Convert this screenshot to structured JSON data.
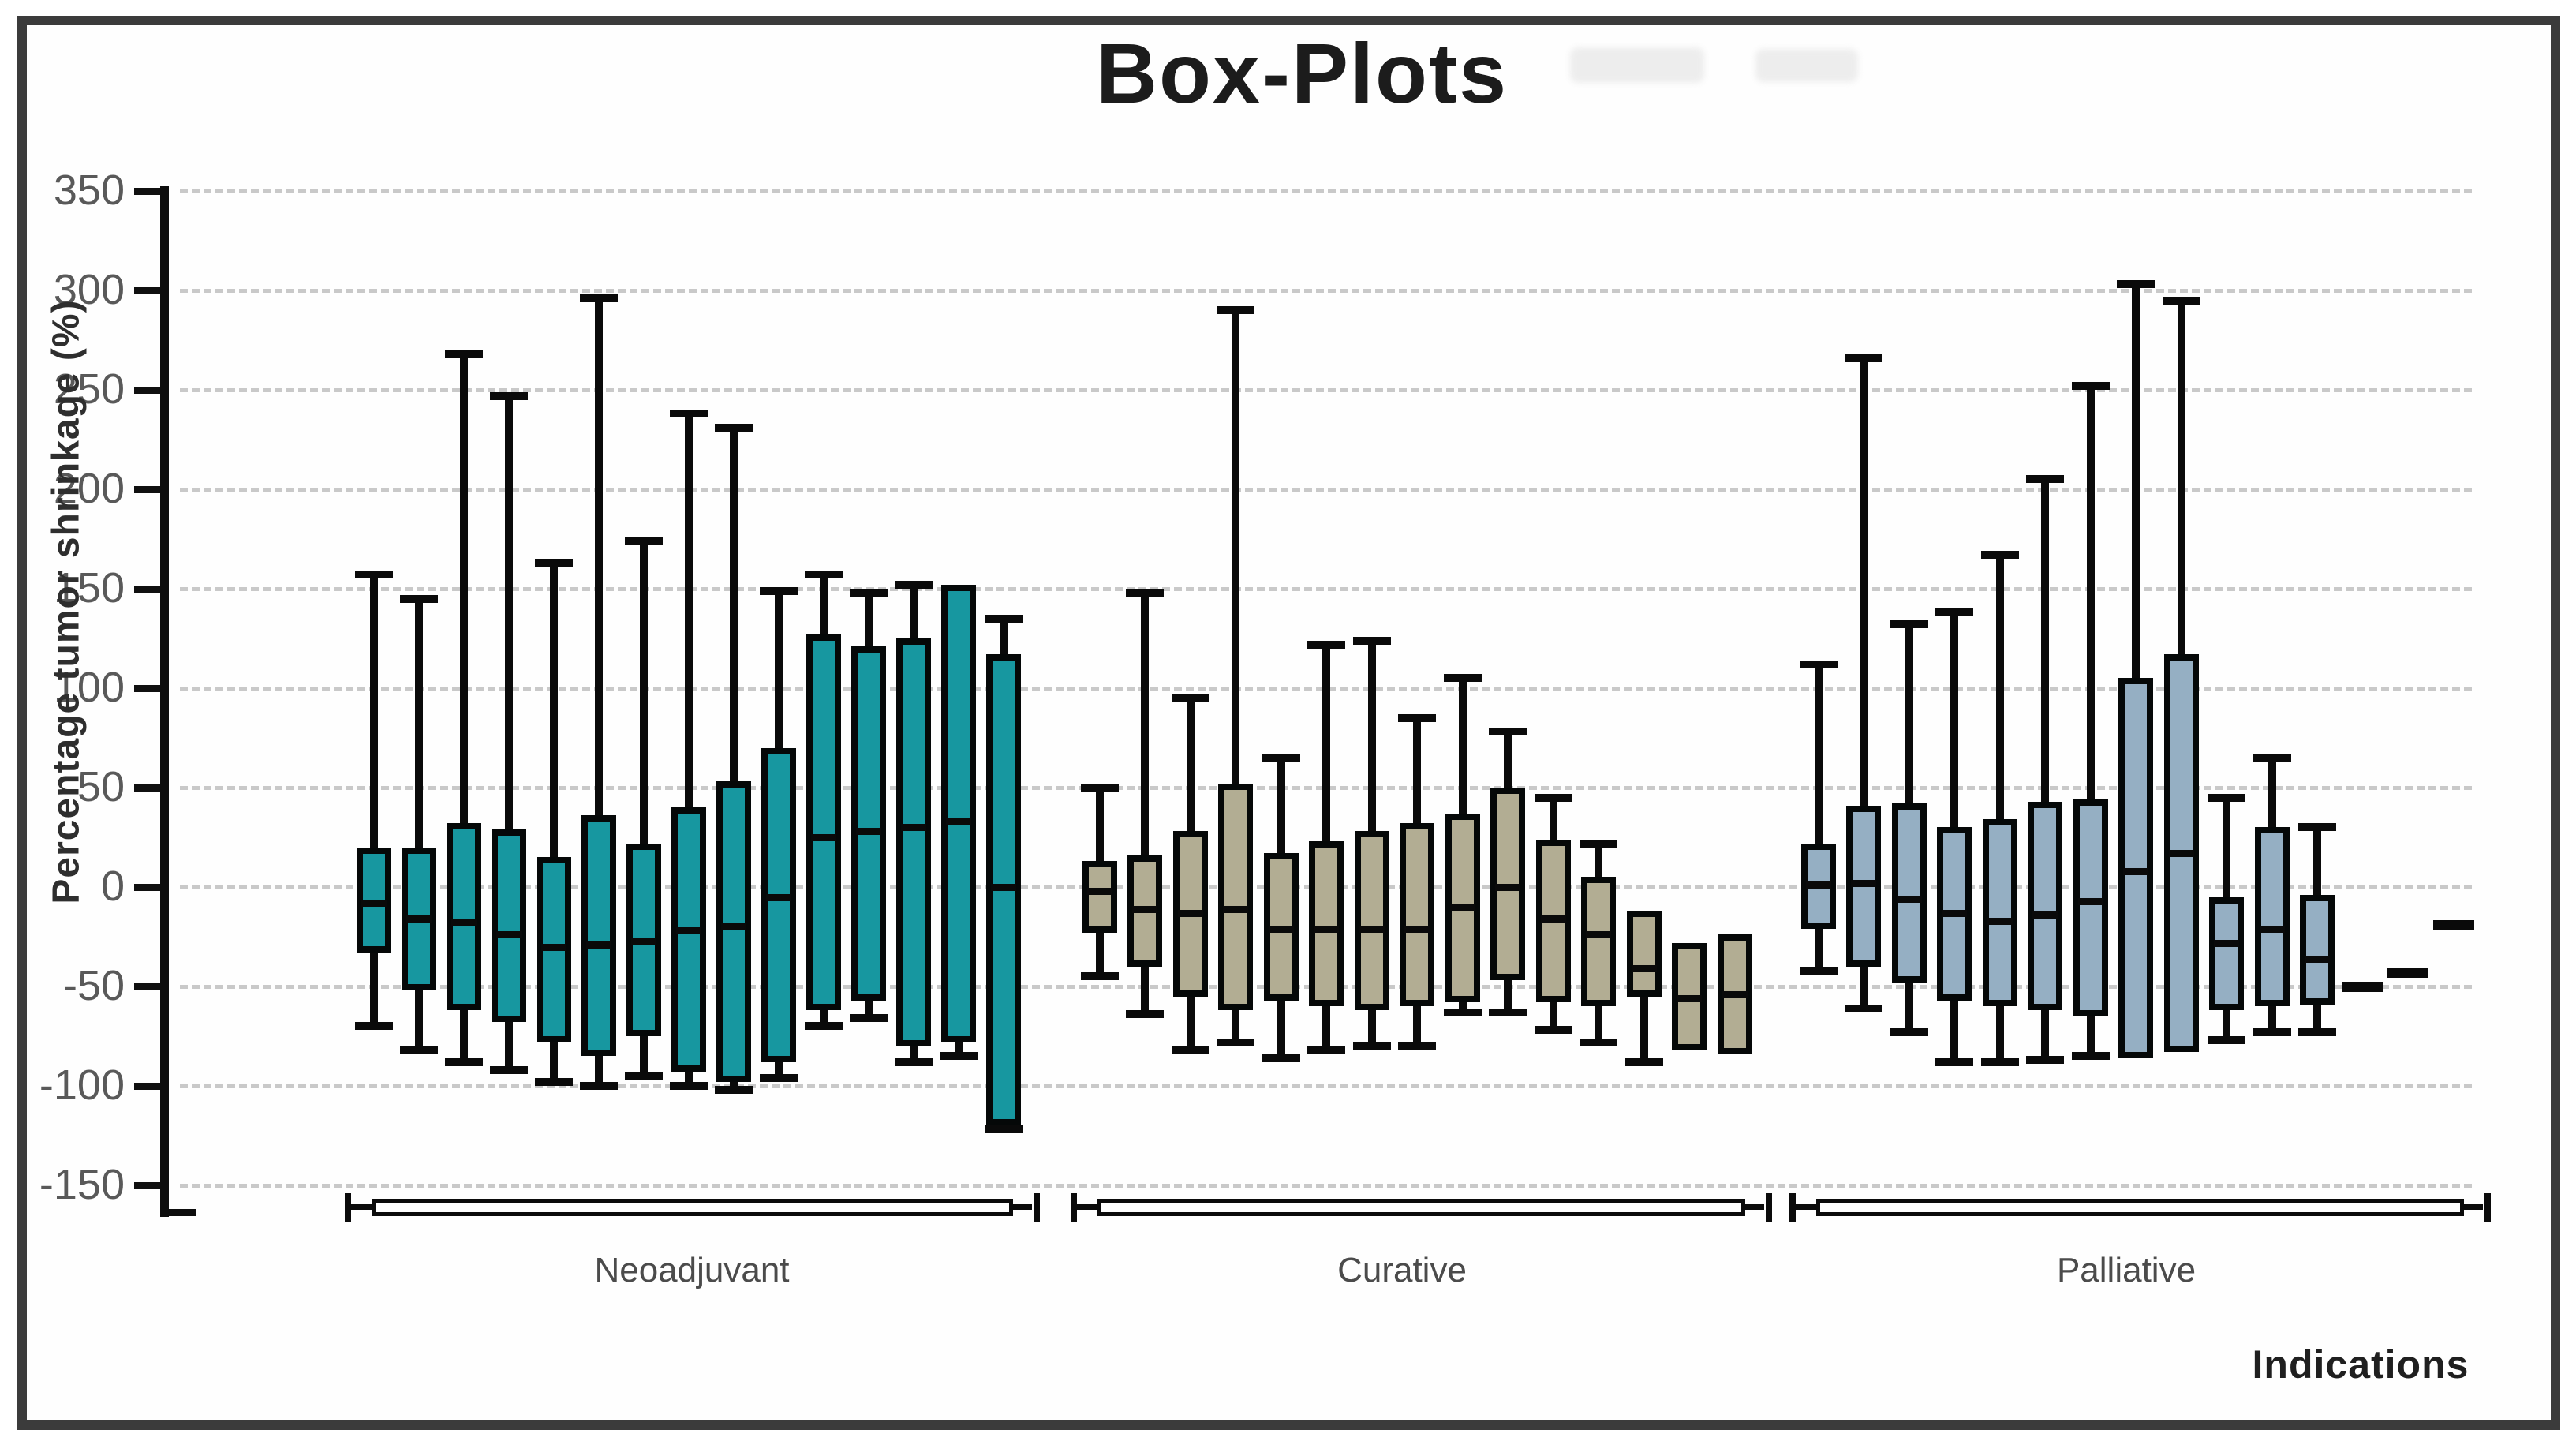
{
  "chart_data": {
    "type": "box",
    "title": "Box-Plots",
    "ylabel": "Percentage tumor shrinkage (%)",
    "xlabel": "Indications",
    "ylim": [
      -150,
      350
    ],
    "y_ticks": [
      350,
      300,
      250,
      200,
      150,
      100,
      50,
      0,
      -50,
      -100,
      -150
    ],
    "grid": "dashed horizontal at every tick",
    "colors": {
      "neoadjuvant_fill": "#1797a0",
      "curative_fill": "#b2ad93",
      "palliative_fill": "#95afc3",
      "line_black": "#0a0a0a",
      "frame_border": "#3b3b3b",
      "gridline_gray": "#c9c9c9",
      "tick_label_gray": "#595959"
    },
    "groups": [
      {
        "name": "Neoadjuvant",
        "fill": "#1797a0",
        "boxes": [
          {
            "lo": -70,
            "q1": -33,
            "med": -8,
            "q3": 20,
            "hi": 157
          },
          {
            "lo": -82,
            "q1": -52,
            "med": -16,
            "q3": 20,
            "hi": 145
          },
          {
            "lo": -88,
            "q1": -62,
            "med": -18,
            "q3": 32,
            "hi": 268
          },
          {
            "lo": -92,
            "q1": -68,
            "med": -24,
            "q3": 29,
            "hi": 247
          },
          {
            "lo": -98,
            "q1": -78,
            "med": -30,
            "q3": 15,
            "hi": 163
          },
          {
            "lo": -100,
            "q1": -85,
            "med": -29,
            "q3": 36,
            "hi": 296
          },
          {
            "lo": -95,
            "q1": -75,
            "med": -27,
            "q3": 22,
            "hi": 174
          },
          {
            "lo": -100,
            "q1": -93,
            "med": -22,
            "q3": 40,
            "hi": 238
          },
          {
            "lo": -102,
            "q1": -98,
            "med": -20,
            "q3": 53,
            "hi": 231
          },
          {
            "lo": -96,
            "q1": -88,
            "med": -5,
            "q3": 70,
            "hi": 149
          },
          {
            "lo": -70,
            "q1": -62,
            "med": 25,
            "q3": 127,
            "hi": 157
          },
          {
            "lo": -66,
            "q1": -57,
            "med": 28,
            "q3": 121,
            "hi": 148
          },
          {
            "lo": -88,
            "q1": -80,
            "med": 30,
            "q3": 125,
            "hi": 152
          },
          {
            "lo": -85,
            "q1": -78,
            "med": 33,
            "q3": 152,
            "hi": 152
          },
          {
            "lo": -122,
            "q1": -120,
            "med": 0,
            "q3": 117,
            "hi": 135
          }
        ]
      },
      {
        "name": "Curative",
        "fill": "#b2ad93",
        "boxes": [
          {
            "lo": -45,
            "q1": -23,
            "med": -2,
            "q3": 13,
            "hi": 50
          },
          {
            "lo": -64,
            "q1": -40,
            "med": -11,
            "q3": 16,
            "hi": 148
          },
          {
            "lo": -82,
            "q1": -55,
            "med": -13,
            "q3": 28,
            "hi": 95
          },
          {
            "lo": -78,
            "q1": -62,
            "med": -11,
            "q3": 52,
            "hi": 290
          },
          {
            "lo": -86,
            "q1": -57,
            "med": -21,
            "q3": 17,
            "hi": 65
          },
          {
            "lo": -82,
            "q1": -60,
            "med": -21,
            "q3": 23,
            "hi": 122
          },
          {
            "lo": -80,
            "q1": -62,
            "med": -21,
            "q3": 28,
            "hi": 124
          },
          {
            "lo": -80,
            "q1": -60,
            "med": -21,
            "q3": 32,
            "hi": 85
          },
          {
            "lo": -63,
            "q1": -58,
            "med": -10,
            "q3": 37,
            "hi": 105
          },
          {
            "lo": -63,
            "q1": -47,
            "med": 0,
            "q3": 50,
            "hi": 78
          },
          {
            "lo": -72,
            "q1": -58,
            "med": -16,
            "q3": 24,
            "hi": 45
          },
          {
            "lo": -78,
            "q1": -60,
            "med": -24,
            "q3": 5,
            "hi": 22
          },
          {
            "lo": -88,
            "q1": -55,
            "med": -41,
            "q3": -12,
            "hi": -12
          },
          {
            "lo": -82,
            "q1": -82,
            "med": -56,
            "q3": -28,
            "hi": -28
          },
          {
            "lo": -84,
            "q1": -84,
            "med": -54,
            "q3": -24,
            "hi": -24
          }
        ]
      },
      {
        "name": "Palliative",
        "fill": "#95afc3",
        "boxes": [
          {
            "lo": -42,
            "q1": -21,
            "med": 1,
            "q3": 22,
            "hi": 112
          },
          {
            "lo": -61,
            "q1": -40,
            "med": 2,
            "q3": 41,
            "hi": 266
          },
          {
            "lo": -73,
            "q1": -48,
            "med": -6,
            "q3": 42,
            "hi": 132
          },
          {
            "lo": -88,
            "q1": -57,
            "med": -13,
            "q3": 30,
            "hi": 138
          },
          {
            "lo": -88,
            "q1": -60,
            "med": -17,
            "q3": 34,
            "hi": 167
          },
          {
            "lo": -87,
            "q1": -62,
            "med": -14,
            "q3": 43,
            "hi": 205
          },
          {
            "lo": -85,
            "q1": -65,
            "med": -7,
            "q3": 44,
            "hi": 252
          },
          {
            "lo": -86,
            "q1": -86,
            "med": 8,
            "q3": 105,
            "hi": 303
          },
          {
            "lo": -83,
            "q1": -83,
            "med": 17,
            "q3": 117,
            "hi": 295
          },
          {
            "lo": -77,
            "q1": -62,
            "med": -28,
            "q3": -5,
            "hi": 45
          },
          {
            "lo": -73,
            "q1": -60,
            "med": -21,
            "q3": 30,
            "hi": 65
          },
          {
            "lo": -73,
            "q1": -59,
            "med": -36,
            "q3": -4,
            "hi": 30
          },
          {
            "dash": true,
            "med": -50
          },
          {
            "dash": true,
            "med": -43
          },
          {
            "dash": true,
            "med": -19
          }
        ]
      }
    ],
    "legend": "none"
  }
}
